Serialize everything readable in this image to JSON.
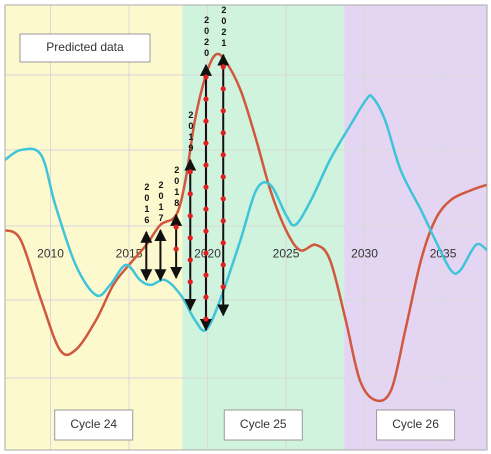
{
  "chart_data": {
    "type": "line",
    "annotation_box": "Predicted data",
    "x_label_position": 44,
    "xlim": [
      2007.1,
      2037.8
    ],
    "ylim": [
      0,
      100
    ],
    "xticks": [
      2010,
      2015,
      2020,
      2025,
      2030,
      2035
    ],
    "grid": true,
    "regions": [
      {
        "label": "Cycle 24",
        "start": 2007.1,
        "end": 2018.4,
        "color": "#fdf9cf"
      },
      {
        "label": "Cycle 25",
        "start": 2018.4,
        "end": 2028.7,
        "color": "#cff3dc"
      },
      {
        "label": "Cycle 26",
        "start": 2028.7,
        "end": 2037.8,
        "color": "#e4d6f2"
      }
    ],
    "series": [
      {
        "color": "#d0583e",
        "x": [
          2007.1,
          2008.1,
          2009.4,
          2010.6,
          2011.6,
          2012.9,
          2014.0,
          2015.0,
          2016.1,
          2017.0,
          2018.0,
          2018.6,
          2019.2,
          2019.9,
          2020.5,
          2021.1,
          2022.1,
          2023.1,
          2024.0,
          2025.0,
          2025.9,
          2026.9,
          2027.8,
          2028.8,
          2029.7,
          2030.7,
          2031.7,
          2032.6,
          2033.6,
          2034.5,
          2035.5,
          2036.8,
          2037.8
        ],
        "values": [
          49.4,
          47.2,
          33.7,
          22.5,
          22.5,
          29.2,
          37.1,
          41.6,
          46.1,
          50.6,
          52.8,
          60.7,
          74.2,
          84.3,
          88.8,
          87.6,
          80.9,
          69.7,
          58.4,
          49.4,
          44.9,
          46.1,
          42.7,
          29.2,
          15.7,
          11.2,
          13.5,
          27.0,
          42.7,
          51.7,
          56.2,
          58.4,
          59.6
        ]
      },
      {
        "color": "#40c4da",
        "x": [
          2007.1,
          2008.1,
          2009.4,
          2010.3,
          2011.6,
          2012.9,
          2013.8,
          2014.8,
          2015.7,
          2016.4,
          2017.3,
          2018.3,
          2019.2,
          2019.9,
          2020.8,
          2022.1,
          2023.1,
          2024.0,
          2025.0,
          2025.6,
          2026.6,
          2027.8,
          2029.1,
          2030.1,
          2030.5,
          2031.3,
          2032.3,
          2033.6,
          2034.5,
          2035.5,
          2036.1,
          2037.1,
          2037.8
        ],
        "values": [
          65.2,
          67.4,
          66.3,
          55.1,
          41.6,
          34.8,
          37.1,
          41.6,
          38.2,
          37.1,
          38.2,
          34.8,
          29.2,
          27.0,
          33.7,
          47.2,
          58.4,
          59.6,
          52.8,
          50.6,
          56.2,
          65.2,
          73.0,
          78.7,
          79.3,
          74.2,
          62.9,
          53.9,
          47.2,
          40.4,
          40.4,
          46.1,
          44.9
        ]
      }
    ],
    "arrows": [
      {
        "label": "2016",
        "x": 2016.1,
        "from": 38.2,
        "to": 49.0,
        "dots": false
      },
      {
        "label": "2017",
        "x": 2017.0,
        "from": 38.2,
        "to": 49.4,
        "dots": false
      },
      {
        "label": "2018",
        "x": 2018.0,
        "from": 38.7,
        "to": 52.8,
        "dots": true
      },
      {
        "label": "2019",
        "x": 2018.9,
        "from": 31.5,
        "to": 65.2,
        "dots": true
      },
      {
        "label": "2020",
        "x": 2019.9,
        "from": 27.0,
        "to": 86.5,
        "dots": true
      },
      {
        "label": "2021",
        "x": 2021.0,
        "from": 30.3,
        "to": 88.8,
        "dots": true
      }
    ]
  }
}
